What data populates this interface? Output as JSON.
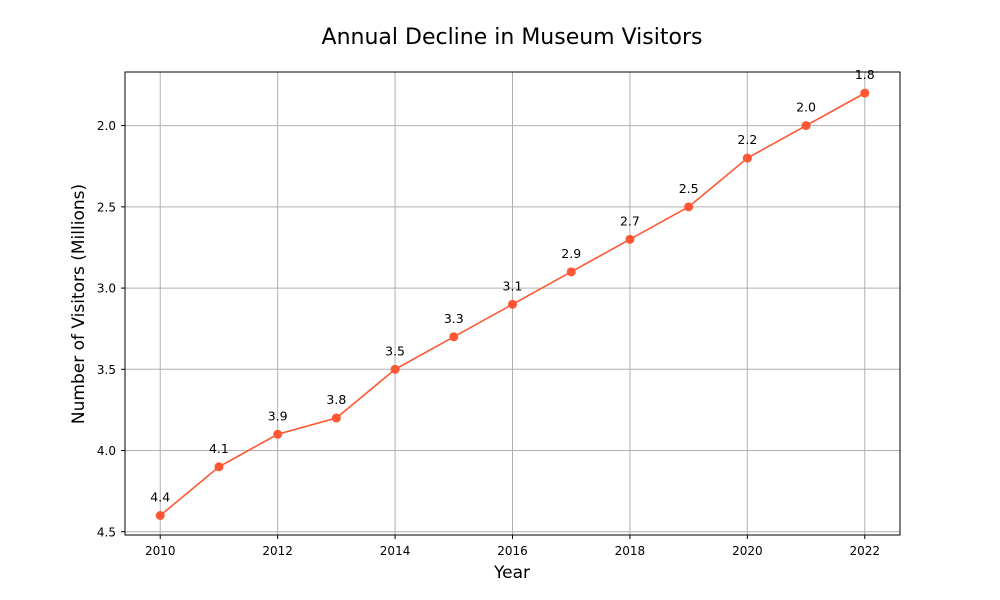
{
  "chart_data": {
    "type": "line",
    "title": "Annual Decline in Museum Visitors",
    "xlabel": "Year",
    "ylabel": "Number of Visitors (Millions)",
    "y_inverted": true,
    "grid": true,
    "xlim": [
      2009.4,
      2022.6
    ],
    "ylim": [
      4.52,
      1.67
    ],
    "x_ticks": [
      2010,
      2012,
      2014,
      2016,
      2018,
      2020,
      2022
    ],
    "y_ticks": [
      "2.0",
      "2.5",
      "3.0",
      "3.5",
      "4.0",
      "4.5"
    ],
    "x": [
      2010,
      2011,
      2012,
      2013,
      2014,
      2015,
      2016,
      2017,
      2018,
      2019,
      2020,
      2021,
      2022
    ],
    "series": [
      {
        "color": "#ff5733",
        "marker": "circle",
        "values": [
          4.4,
          4.1,
          3.9,
          3.8,
          3.5,
          3.3,
          3.1,
          2.9,
          2.7,
          2.5,
          2.2,
          2.0,
          1.8
        ],
        "labels": [
          "4.4",
          "4.1",
          "3.9",
          "3.8",
          "3.5",
          "3.3",
          "3.1",
          "2.9",
          "2.7",
          "2.5",
          "2.2",
          "2.0",
          "1.8"
        ]
      }
    ]
  }
}
